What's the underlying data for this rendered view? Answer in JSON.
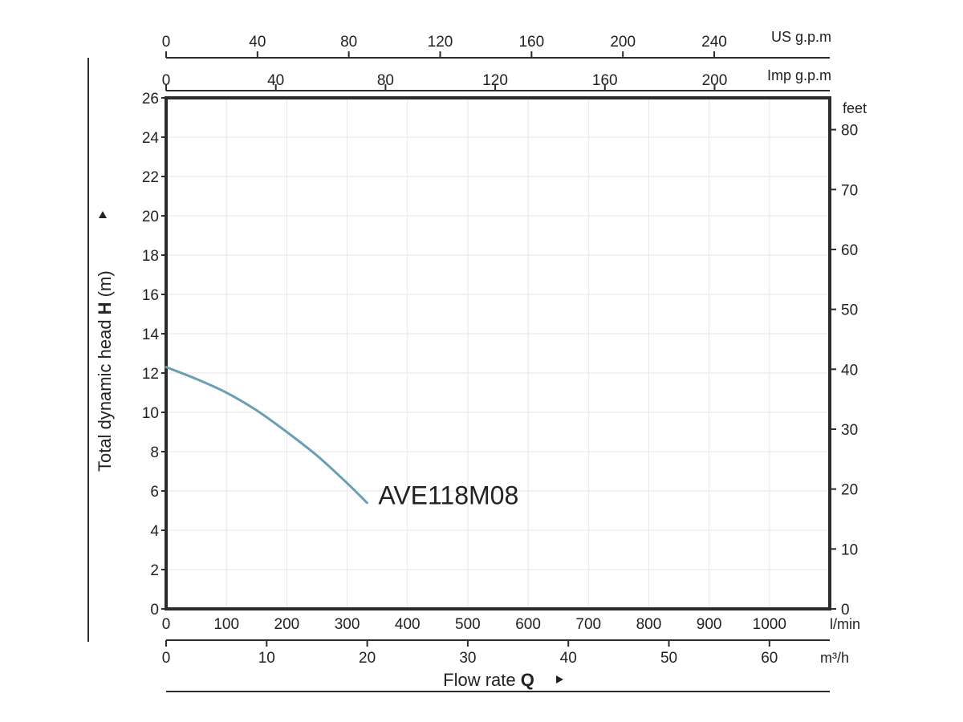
{
  "chart_data": {
    "type": "line",
    "title": "",
    "colors": {
      "curve": "#6a9fb5",
      "frame": "#2b2b2b",
      "grid": "#e6e6e6"
    },
    "grid": true,
    "x_primary": {
      "unit": "l/min",
      "range": [
        0,
        1100
      ],
      "ticks": [
        "0",
        "100",
        "200",
        "300",
        "400",
        "500",
        "600",
        "700",
        "800",
        "900",
        "1000"
      ]
    },
    "x_m3h": {
      "unit": "m³/h",
      "range": [
        0,
        66
      ],
      "ticks": [
        "0",
        "10",
        "20",
        "30",
        "40",
        "50",
        "60"
      ]
    },
    "x_us_gpm": {
      "unit": "US g.p.m",
      "range": [
        0,
        290.6
      ],
      "ticks": [
        "0",
        "40",
        "80",
        "120",
        "160",
        "200",
        "240"
      ]
    },
    "x_imp_gpm": {
      "unit": "Imp g.p.m",
      "range": [
        0,
        242
      ],
      "ticks": [
        "0",
        "40",
        "80",
        "120",
        "160",
        "200"
      ]
    },
    "y_primary": {
      "label_prefix": "Total dynamic head ",
      "label_bold": "H",
      "label_suffix": " (m)",
      "range": [
        0,
        26
      ],
      "ticks": [
        "0",
        "2",
        "4",
        "6",
        "8",
        "10",
        "12",
        "14",
        "16",
        "18",
        "20",
        "22",
        "24",
        "26"
      ]
    },
    "y_secondary": {
      "unit": "feet",
      "range": [
        0,
        85.3
      ],
      "ticks": [
        "0",
        "10",
        "20",
        "30",
        "40",
        "50",
        "60",
        "70",
        "80"
      ]
    },
    "xlabel_prefix": "Flow rate ",
    "xlabel_bold": "Q",
    "series": [
      {
        "name": "AVE118M08",
        "x": [
          0,
          50,
          100,
          150,
          200,
          250,
          300,
          333
        ],
        "y": [
          12.3,
          11.7,
          11.0,
          10.1,
          9.0,
          7.8,
          6.4,
          5.4
        ]
      }
    ]
  }
}
